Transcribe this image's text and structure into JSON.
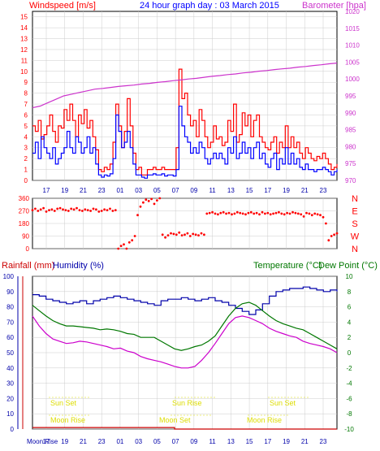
{
  "header": {
    "windspeed_label": "Windspeed [m/s]",
    "title": "24 hour graph day : 03 March 2015",
    "barometer_label": "Barometer [hpa]"
  },
  "mid_header": {
    "rain_label": "Rainfall (mm)",
    "humidity_label": "Humidity (%)",
    "temp_label": "Temperature (°C)",
    "dew_label": "Dew Point (°C)"
  },
  "moon_label": "Moon Rise",
  "colors": {
    "wind_gust": "#ff0000",
    "wind_avg": "#0000ff",
    "barometer": "#cc33cc",
    "direction": "#ff0000",
    "temperature": "#007700",
    "dewpoint": "#cc00cc",
    "humidity": "#0000aa",
    "rain": "#cc0000",
    "sun_moon": "#dddd00",
    "frame": "#000000"
  },
  "time_ticks": [
    "17",
    "19",
    "21",
    "23",
    "01",
    "03",
    "05",
    "07",
    "09",
    "11",
    "13",
    "15",
    "17",
    "19",
    "21",
    "23"
  ],
  "chart_data": [
    {
      "type": "line",
      "title": "24 hour graph day : 03 March 2015",
      "ylabel": "Windspeed [m/s]",
      "y2label": "Barometer [hpa]",
      "ylim": [
        0,
        15.5
      ],
      "y2lim": [
        970,
        1020
      ],
      "yticks": [
        0,
        1,
        2,
        3,
        4,
        5,
        6,
        7,
        8,
        9,
        10,
        11,
        12,
        13,
        14,
        15
      ],
      "y2ticks": [
        970,
        975,
        980,
        985,
        990,
        995,
        1000,
        1005,
        1010,
        1015,
        1020
      ],
      "grid": true,
      "series": [
        {
          "name": "Windspeed [m/s]",
          "color": "#ff0000",
          "values": [
            5.0,
            4.5,
            5.5,
            3.8,
            4.2,
            5.0,
            6.0,
            4.5,
            3.5,
            5.0,
            4.8,
            6.5,
            5.5,
            7.0,
            5.5,
            4.0,
            6.0,
            5.2,
            6.5,
            4.8,
            5.5,
            4.0,
            2.8,
            1.0,
            0.8,
            1.2,
            1.0,
            1.5,
            3.5,
            7.0,
            5.0,
            3.0,
            4.5,
            7.5,
            5.0,
            2.5,
            1.0,
            1.2,
            0.5,
            0.5,
            1.0,
            1.0,
            1.2,
            1.0,
            1.0,
            1.2,
            1.0,
            1.0,
            1.0,
            1.0,
            3.0,
            10.2,
            7.5,
            8.0,
            6.0,
            5.0,
            5.5,
            4.0,
            6.5,
            5.5,
            4.0,
            3.0,
            3.5,
            5.0,
            3.8,
            4.0,
            3.2,
            3.5,
            5.5,
            4.5,
            7.0,
            3.5,
            4.2,
            6.2,
            5.0,
            6.0,
            4.0,
            5.5,
            6.0,
            4.0,
            3.5,
            3.0,
            2.8,
            3.5,
            4.0,
            2.5,
            3.5,
            3.0,
            5.0,
            3.0,
            4.0,
            3.0,
            3.5,
            2.5,
            2.0,
            3.0,
            2.5,
            2.0,
            1.8,
            2.2,
            2.0,
            2.5,
            2.0,
            1.5,
            1.0,
            1.2,
            1.5
          ]
        },
        {
          "name": "Wind avg",
          "color": "#0000ff",
          "values": [
            2.5,
            3.5,
            2.0,
            4.0,
            3.0,
            2.5,
            2.0,
            3.0,
            1.5,
            2.0,
            2.5,
            3.0,
            4.5,
            3.0,
            2.5,
            4.0,
            3.5,
            2.5,
            3.0,
            4.0,
            2.5,
            3.0,
            1.5,
            0.5,
            0.3,
            0.5,
            0.4,
            0.6,
            2.0,
            6.0,
            4.5,
            3.0,
            3.5,
            4.5,
            3.0,
            1.5,
            0.5,
            0.5,
            0.3,
            0.2,
            0.5,
            0.5,
            0.6,
            0.5,
            0.5,
            0.6,
            0.4,
            0.5,
            0.5,
            0.4,
            1.0,
            6.8,
            5.0,
            4.0,
            3.5,
            2.5,
            3.0,
            2.5,
            3.5,
            3.0,
            2.0,
            1.5,
            2.0,
            2.5,
            2.0,
            2.5,
            2.0,
            1.5,
            3.0,
            2.5,
            4.0,
            2.0,
            2.5,
            3.5,
            2.5,
            3.0,
            2.0,
            3.0,
            3.5,
            2.0,
            2.5,
            1.5,
            1.2,
            2.0,
            2.5,
            1.0,
            2.0,
            1.5,
            3.0,
            1.5,
            2.5,
            1.5,
            2.0,
            1.2,
            1.0,
            1.5,
            1.0,
            1.0,
            0.8,
            1.0,
            1.0,
            1.2,
            1.0,
            0.8,
            0.5,
            0.8,
            1.0
          ]
        },
        {
          "name": "Barometer [hpa]",
          "color": "#cc33cc",
          "axis": "y2",
          "values": [
            991.5,
            992,
            993,
            994,
            995,
            995.5,
            996,
            996.5,
            997,
            997.2,
            997.5,
            997.8,
            998,
            998.2,
            998.5,
            998.7,
            999,
            999.2,
            999.5,
            999.7,
            1000,
            1000.2,
            1000.5,
            1000.8,
            1001,
            1001.3,
            1001.5,
            1001.8,
            1002,
            1002.3,
            1002.5,
            1002.8,
            1003,
            1003.2,
            1003.5,
            1003.7,
            1004,
            1004.2,
            1004.5,
            1004.7
          ]
        }
      ]
    },
    {
      "type": "scatter",
      "ylabel": "Wind direction",
      "ylim": [
        0,
        360
      ],
      "yticks": [
        0,
        90,
        180,
        270,
        360
      ],
      "y2ticks": [
        "N",
        "W",
        "S",
        "E",
        "N"
      ],
      "series": [
        {
          "name": "Wind direction",
          "color": "#ff0000",
          "values": [
            275,
            285,
            270,
            280,
            290,
            265,
            275,
            280,
            270,
            285,
            290,
            280,
            275,
            270,
            285,
            280,
            290,
            275,
            270,
            280,
            275,
            270,
            285,
            280,
            265,
            270,
            280,
            275,
            285,
            270,
            275,
            0,
            20,
            30,
            0,
            45,
            60,
            90,
            240,
            300,
            330,
            350,
            340,
            355,
            320,
            345,
            360,
            100,
            80,
            95,
            110,
            105,
            100,
            115,
            95,
            100,
            110,
            90,
            105,
            100,
            95,
            110,
            100,
            250,
            255,
            260,
            250,
            245,
            255,
            260,
            250,
            255,
            245,
            250,
            260,
            255,
            250,
            245,
            255,
            260,
            250,
            255,
            245,
            260,
            250,
            255,
            245,
            250,
            255,
            260,
            250,
            245,
            255,
            250,
            260,
            255,
            250,
            245,
            230,
            255,
            250,
            240,
            250,
            245,
            240,
            225,
            180,
            60,
            90,
            100,
            110
          ]
        }
      ]
    },
    {
      "type": "line",
      "ylabel": "Humidity (%)",
      "y2label": "Temperature (°C)",
      "ylim": [
        0,
        100
      ],
      "y2lim": [
        -10,
        10
      ],
      "yticks": [
        0,
        10,
        20,
        30,
        40,
        50,
        60,
        70,
        80,
        90,
        100
      ],
      "y2ticks": [
        -10,
        -8,
        -6,
        -4,
        -2,
        0,
        2,
        4,
        6,
        8,
        10
      ],
      "series": [
        {
          "name": "Humidity (%)",
          "color": "#0000aa",
          "values": [
            88,
            87,
            85,
            84,
            83,
            82,
            83,
            84,
            82,
            84,
            85,
            86,
            87,
            86,
            85,
            84,
            83,
            82,
            81,
            84,
            85,
            85,
            86,
            85,
            84,
            85,
            86,
            84,
            83,
            81,
            79,
            77,
            75,
            78,
            82,
            87,
            90,
            91,
            92,
            92,
            93,
            92,
            91,
            90,
            91,
            90
          ]
        },
        {
          "name": "Temperature (°C)",
          "color": "#007700",
          "values": [
            6.2,
            5.5,
            4.8,
            4.2,
            3.8,
            3.5,
            3.5,
            3.4,
            3.3,
            3.2,
            3.0,
            3.1,
            3.0,
            2.8,
            2.5,
            2.4,
            2.0,
            2.0,
            2.0,
            1.5,
            1.0,
            0.5,
            0.3,
            0.5,
            0.8,
            1.0,
            1.5,
            2.2,
            3.5,
            4.8,
            5.8,
            6.4,
            6.6,
            6.2,
            5.5,
            4.8,
            4.2,
            3.8,
            3.5,
            3.2,
            3.0,
            2.5,
            2.0,
            1.5,
            1.0,
            0.5
          ]
        },
        {
          "name": "Dew Point (°C)",
          "color": "#cc00cc",
          "values": [
            4.8,
            3.5,
            2.5,
            1.8,
            1.5,
            1.2,
            1.3,
            1.5,
            1.4,
            1.2,
            1.0,
            0.8,
            0.5,
            0.6,
            0.2,
            0.0,
            -0.5,
            -0.8,
            -1.0,
            -1.2,
            -1.5,
            -1.8,
            -2.0,
            -2.0,
            -1.8,
            -1.0,
            0.0,
            1.2,
            2.5,
            3.8,
            4.6,
            4.8,
            4.6,
            4.2,
            3.8,
            3.2,
            2.8,
            2.5,
            2.2,
            2.0,
            1.5,
            1.2,
            1.0,
            0.8,
            0.5,
            0.0
          ]
        },
        {
          "name": "Rainfall (mm)",
          "color": "#cc0000",
          "values": [
            1,
            1,
            1,
            1,
            1,
            1,
            1,
            1,
            1,
            1,
            1,
            1,
            1,
            1,
            1,
            1,
            1,
            1,
            1,
            1,
            1,
            0,
            0,
            0,
            0,
            0,
            0,
            0,
            0,
            0,
            0,
            0,
            0,
            0,
            0,
            0,
            0,
            0,
            0,
            0,
            0,
            0,
            0,
            0,
            0,
            0
          ]
        }
      ]
    }
  ],
  "sun_moon": {
    "sun_set_1": "Sun Set",
    "sun_rise": "Sun Rise",
    "sun_set_2": "Sun Set",
    "moon_set_1": "Moon Rise",
    "moon_set_2": "Moon Set",
    "moon_rise_2": "Moon Rise"
  }
}
